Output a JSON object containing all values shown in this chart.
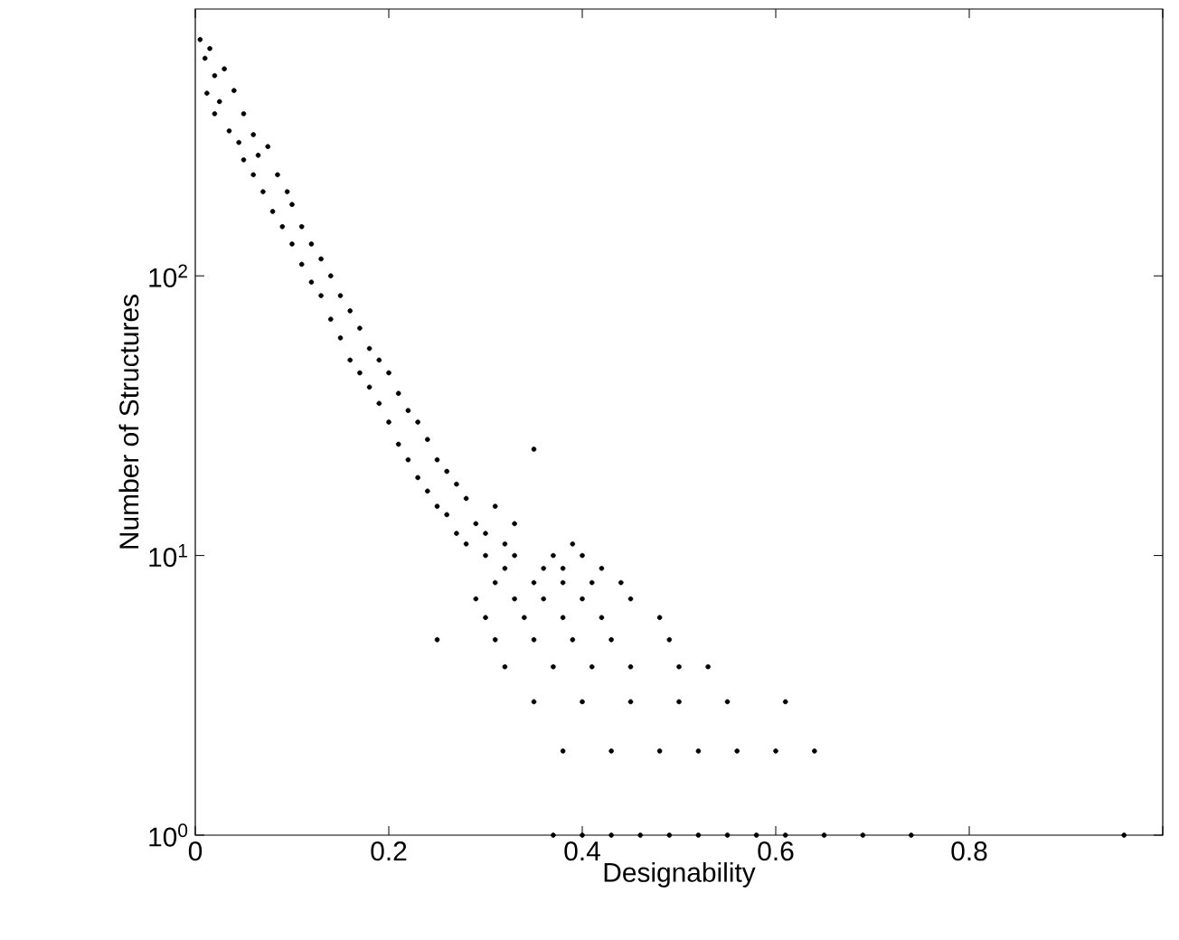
{
  "chart_data": {
    "type": "scatter",
    "xlabel": "Designability",
    "ylabel": "Number of Structures",
    "log": "y",
    "xlim": [
      0,
      1
    ],
    "ylim": [
      1,
      900
    ],
    "xticks": [
      0,
      0.2,
      0.4,
      0.6,
      0.8,
      {
        "value": 1,
        "label": null
      }
    ],
    "yticks": [
      {
        "value": 1,
        "label": "10$^{0}$"
      },
      {
        "value": 10,
        "label": "10$^{1}$"
      },
      {
        "value": 100,
        "label": "10$^{2}$"
      }
    ],
    "grid": false,
    "series": [
      {
        "color": "#000000",
        "x": [
          0.005,
          0.01,
          0.012,
          0.015,
          0.02,
          0.02,
          0.025,
          0.03,
          0.035,
          0.04,
          0.045,
          0.05,
          0.05,
          0.06,
          0.06,
          0.065,
          0.07,
          0.075,
          0.08,
          0.085,
          0.09,
          0.095,
          0.1,
          0.1,
          0.11,
          0.11,
          0.12,
          0.12,
          0.13,
          0.13,
          0.14,
          0.14,
          0.15,
          0.15,
          0.16,
          0.16,
          0.17,
          0.17,
          0.18,
          0.18,
          0.19,
          0.19,
          0.2,
          0.2,
          0.21,
          0.21,
          0.22,
          0.22,
          0.23,
          0.23,
          0.24,
          0.24,
          0.25,
          0.25,
          0.26,
          0.26,
          0.27,
          0.27,
          0.28,
          0.28,
          0.29,
          0.3,
          0.31,
          0.32,
          0.33,
          0.35,
          0.39,
          0.3,
          0.33,
          0.37,
          0.4,
          0.32,
          0.36,
          0.38,
          0.42,
          0.31,
          0.35,
          0.38,
          0.41,
          0.44,
          0.29,
          0.33,
          0.36,
          0.4,
          0.45,
          0.3,
          0.34,
          0.38,
          0.42,
          0.48,
          0.25,
          0.31,
          0.35,
          0.39,
          0.43,
          0.49,
          0.32,
          0.37,
          0.41,
          0.45,
          0.5,
          0.53,
          0.35,
          0.4,
          0.45,
          0.5,
          0.55,
          0.61,
          0.38,
          0.43,
          0.48,
          0.52,
          0.56,
          0.6,
          0.64,
          0.37,
          0.4,
          0.43,
          0.46,
          0.49,
          0.52,
          0.55,
          0.58,
          0.61,
          0.65,
          0.69,
          0.74,
          0.96
        ],
        "values": [
          700,
          600,
          450,
          650,
          520,
          380,
          420,
          550,
          330,
          460,
          300,
          380,
          260,
          320,
          230,
          270,
          200,
          290,
          170,
          230,
          150,
          200,
          130,
          180,
          110,
          150,
          95,
          130,
          85,
          115,
          70,
          100,
          60,
          85,
          50,
          75,
          45,
          65,
          40,
          55,
          35,
          50,
          30,
          45,
          25,
          38,
          22,
          33,
          19,
          30,
          17,
          26,
          15,
          22,
          14,
          20,
          12,
          18,
          11,
          16,
          13,
          12,
          15,
          11,
          13,
          24,
          11,
          10,
          10,
          10,
          10,
          9,
          9,
          9,
          9,
          8,
          8,
          8,
          8,
          8,
          7,
          7,
          7,
          7,
          7,
          6,
          6,
          6,
          6,
          6,
          5,
          5,
          5,
          5,
          5,
          5,
          4,
          4,
          4,
          4,
          4,
          4,
          3,
          3,
          3,
          3,
          3,
          3,
          2,
          2,
          2,
          2,
          2,
          2,
          2,
          1,
          1,
          1,
          1,
          1,
          1,
          1,
          1,
          1,
          1,
          1,
          1,
          1
        ]
      }
    ]
  }
}
